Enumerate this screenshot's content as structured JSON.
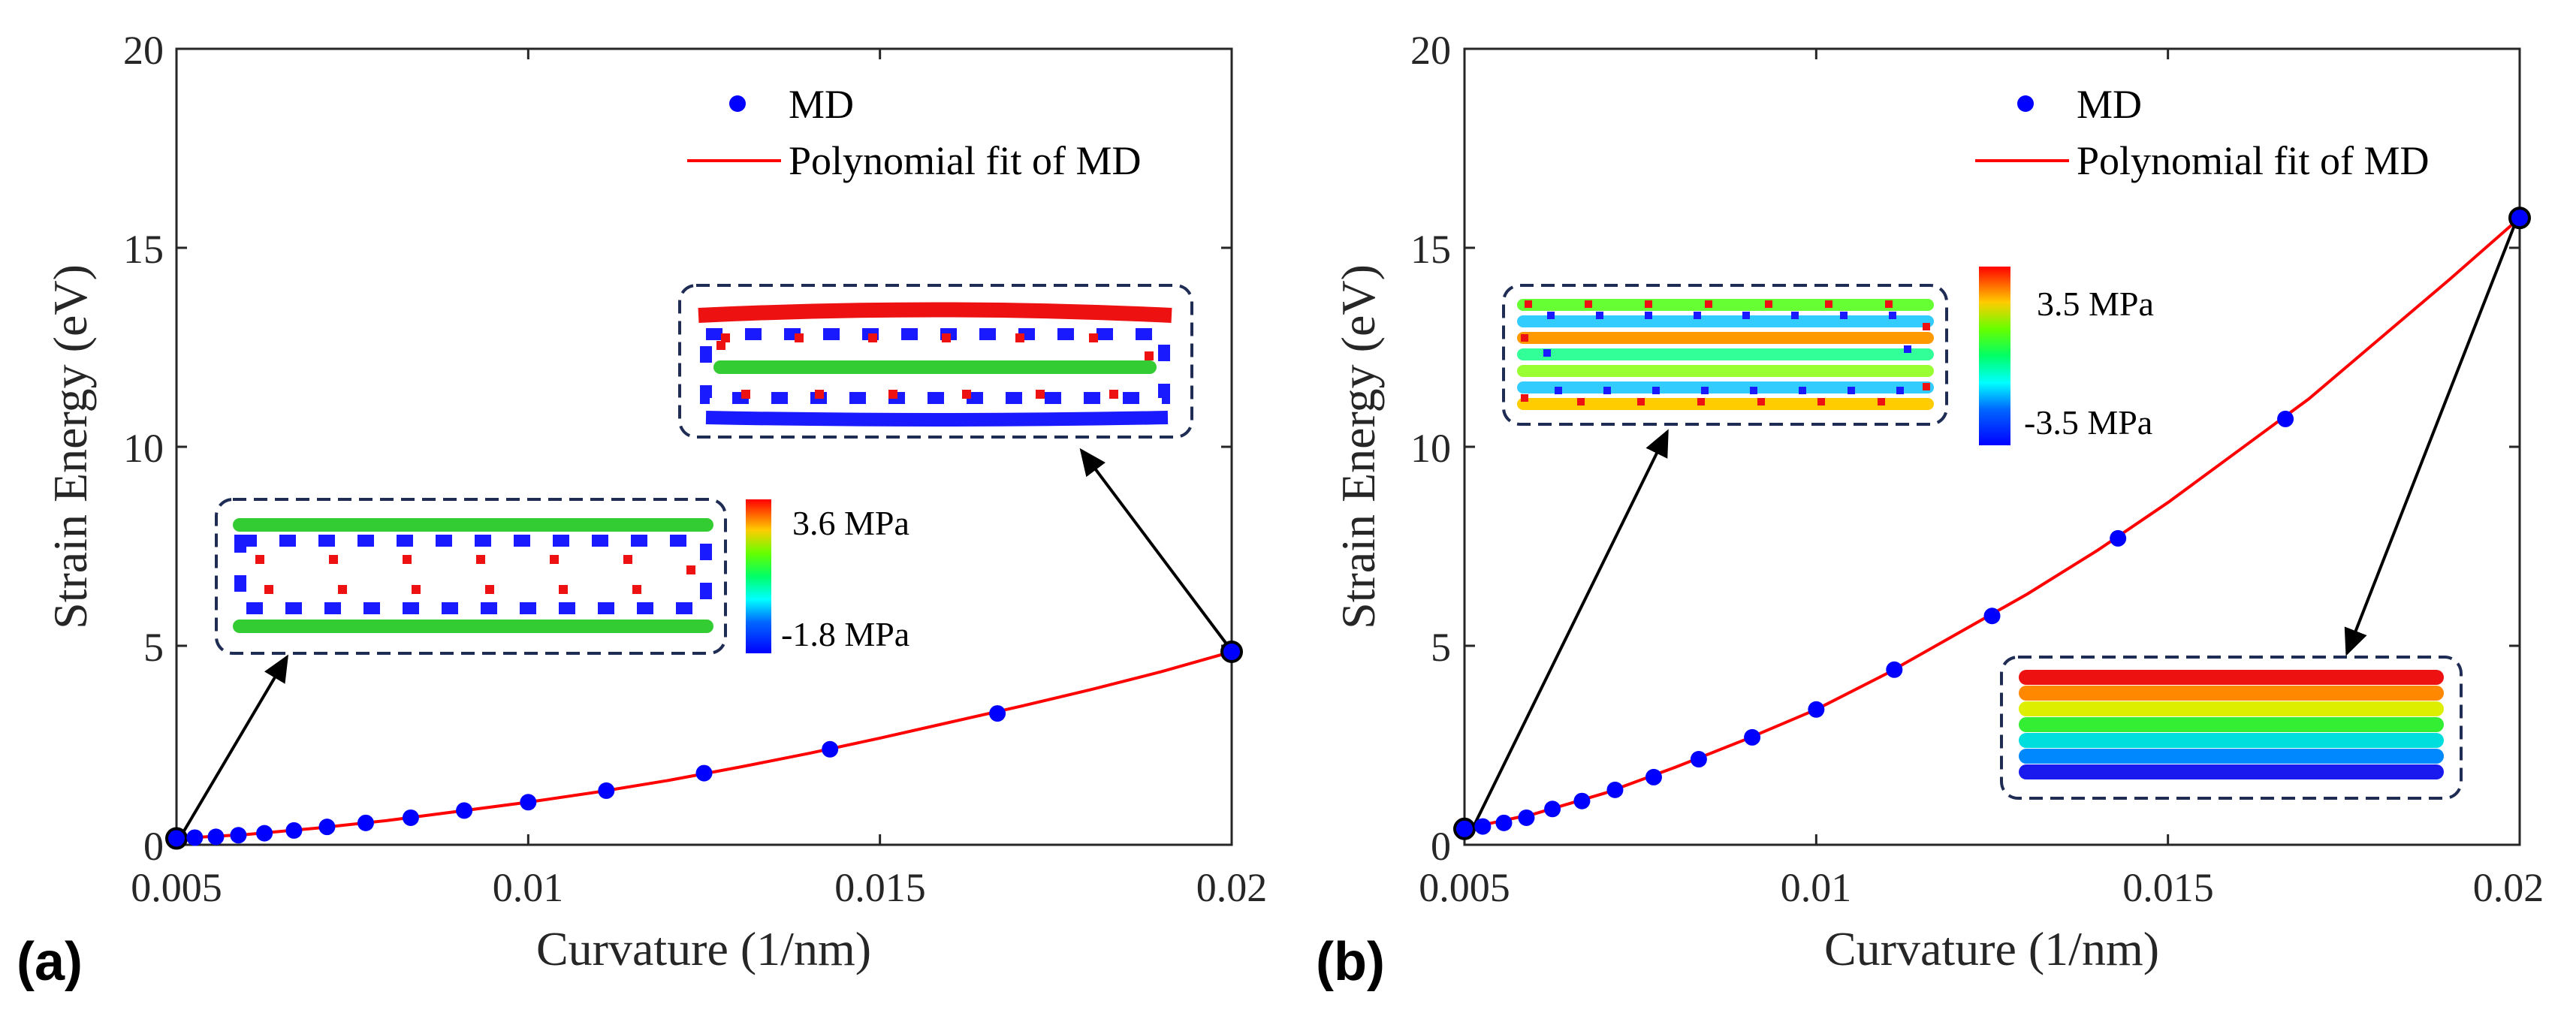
{
  "chart_data": [
    {
      "type": "scatter",
      "panel_label": "(a)",
      "xlabel": "Curvature (1/nm)",
      "ylabel": "Strain Energy (eV)",
      "xlim": [
        0.005,
        0.02
      ],
      "ylim": [
        0,
        20
      ],
      "xticks": [
        "0.005",
        "0.01",
        "0.015",
        "0.02"
      ],
      "yticks": [
        "0",
        "5",
        "10",
        "15",
        "20"
      ],
      "legend": {
        "placement": "top-right",
        "markers_label": "MD",
        "fit_label": "Polynomial fit of MD"
      },
      "series": [
        {
          "name": "MD",
          "x": [
            0.005,
            0.00526,
            0.00556,
            0.00588,
            0.00625,
            0.00667,
            0.00714,
            0.00769,
            0.00833,
            0.00909,
            0.01,
            0.01111,
            0.0125,
            0.01429,
            0.01667,
            0.02
          ],
          "y": [
            0.16,
            0.18,
            0.2,
            0.24,
            0.29,
            0.36,
            0.45,
            0.55,
            0.68,
            0.86,
            1.07,
            1.36,
            1.8,
            2.4,
            3.3,
            4.85
          ]
        },
        {
          "name": "Polynomial fit of MD",
          "x": [
            0.005,
            0.006,
            0.007,
            0.008,
            0.009,
            0.01,
            0.011,
            0.012,
            0.013,
            0.014,
            0.015,
            0.016,
            0.017,
            0.018,
            0.019,
            0.02
          ],
          "y": [
            0.16,
            0.26,
            0.42,
            0.61,
            0.84,
            1.07,
            1.33,
            1.62,
            1.95,
            2.3,
            2.68,
            3.08,
            3.48,
            3.9,
            4.35,
            4.85
          ]
        }
      ],
      "colorbar": {
        "max_label": "3.6 MPa",
        "min_label": "-1.8 MPa"
      }
    },
    {
      "type": "scatter",
      "panel_label": "(b)",
      "xlabel": "Curvature (1/nm)",
      "ylabel": "Strain Energy (eV)",
      "xlim": [
        0.005,
        0.02
      ],
      "ylim": [
        0,
        20
      ],
      "xticks": [
        "0.005",
        "0.01",
        "0.015",
        "0.02"
      ],
      "yticks": [
        "0",
        "5",
        "10",
        "15",
        "20"
      ],
      "legend": {
        "placement": "top-right",
        "markers_label": "MD",
        "fit_label": "Polynomial fit of MD"
      },
      "series": [
        {
          "name": "MD",
          "x": [
            0.005,
            0.00526,
            0.00556,
            0.00588,
            0.00625,
            0.00667,
            0.00714,
            0.00769,
            0.00833,
            0.00909,
            0.01,
            0.01111,
            0.0125,
            0.01429,
            0.01667,
            0.02
          ],
          "y": [
            0.4,
            0.46,
            0.55,
            0.68,
            0.9,
            1.1,
            1.38,
            1.7,
            2.15,
            2.7,
            3.4,
            4.4,
            5.75,
            7.7,
            10.7,
            15.75
          ]
        },
        {
          "name": "Polynomial fit of MD",
          "x": [
            0.005,
            0.006,
            0.007,
            0.008,
            0.009,
            0.01,
            0.011,
            0.012,
            0.013,
            0.014,
            0.015,
            0.016,
            0.017,
            0.018,
            0.019,
            0.02
          ],
          "y": [
            0.4,
            0.78,
            1.3,
            1.95,
            2.65,
            3.4,
            4.3,
            5.3,
            6.3,
            7.4,
            8.6,
            9.9,
            11.2,
            12.7,
            14.2,
            15.75
          ]
        }
      ],
      "colorbar": {
        "max_label": "3.5 MPa",
        "min_label": "-3.5 MPa"
      }
    }
  ]
}
